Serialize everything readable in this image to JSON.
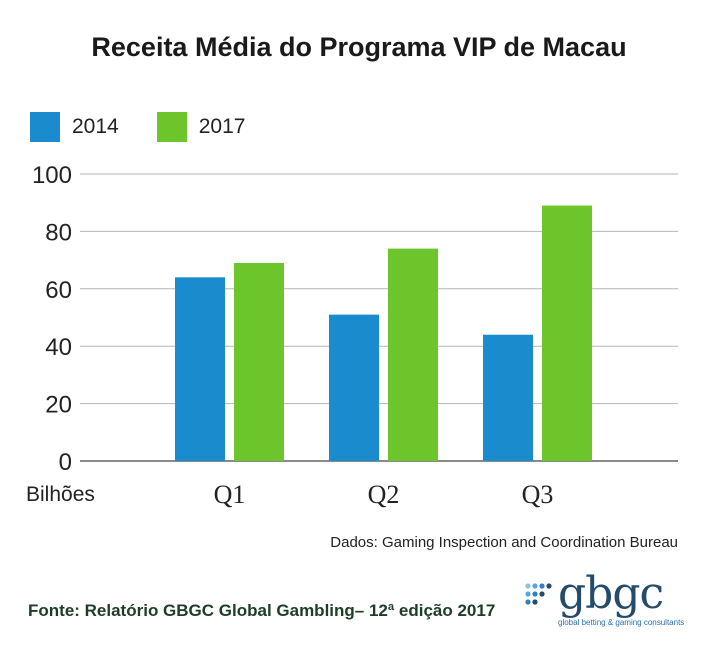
{
  "chart_data": {
    "type": "bar",
    "title": "Receita Média do Programa VIP de Macau",
    "categories": [
      "Q1",
      "Q2",
      "Q3"
    ],
    "series": [
      {
        "name": "2014",
        "color": "#1a8ccd",
        "values": [
          64,
          51,
          44
        ]
      },
      {
        "name": "2017",
        "color": "#6cc52a",
        "values": [
          69,
          74,
          89
        ]
      }
    ],
    "ylabel": "Bilhões",
    "ylim": [
      0,
      100
    ],
    "yticks": [
      0,
      20,
      40,
      60,
      80,
      100
    ],
    "grid": true,
    "legend": "top-left"
  },
  "source_note": "Dados: Gaming Inspection and Coordination Bureau",
  "footer": "Fonte: Relatório GBGC Global Gambling– 12ª edição 2017",
  "logo": {
    "name": "gbgc",
    "tagline": "global betting & gaming consultants"
  }
}
